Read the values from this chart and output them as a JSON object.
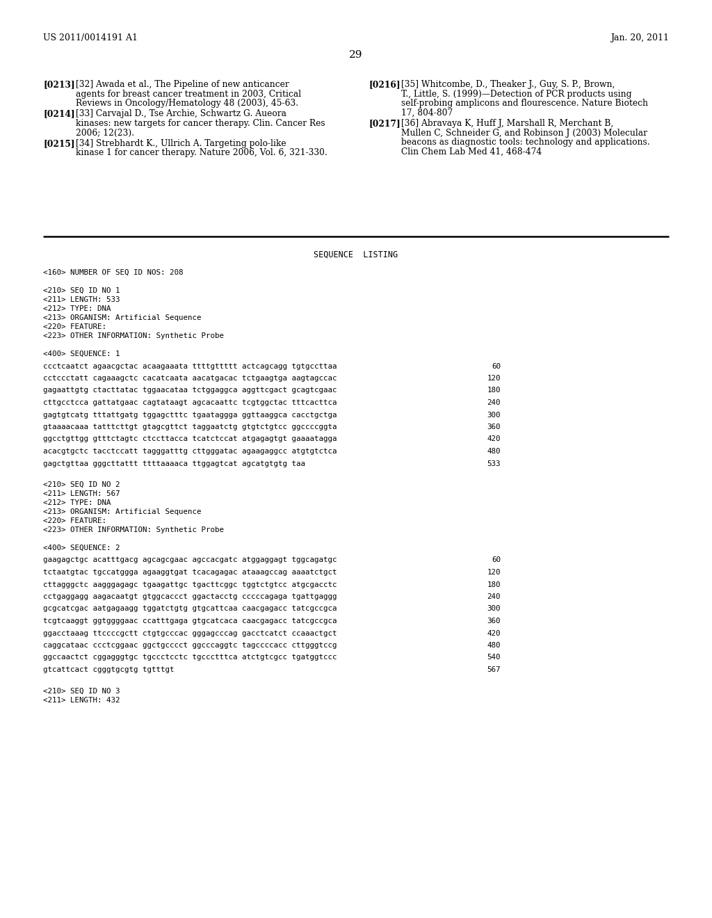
{
  "bg_color": "#ffffff",
  "header_left": "US 2011/0014191 A1",
  "header_right": "Jan. 20, 2011",
  "page_number": "29",
  "ref_left": [
    {
      "tag": "[0213]",
      "lines": [
        "   [32] Awada et al., The Pipeline of new anticancer",
        "   agents for breast cancer treatment in 2003, Critical",
        "   Reviews in Oncology/Hematology 48 (2003), 45-63."
      ]
    },
    {
      "tag": "[0214]",
      "lines": [
        "   [33] Carvajal D., Tse Archie, Schwartz G. Aueora",
        "   kinases: new targets for cancer therapy. Clin. Cancer Res",
        "   2006; 12(23)."
      ]
    },
    {
      "tag": "[0215]",
      "lines": [
        "   [34] Strebhardt K., Ullrich A. Targeting polo-like",
        "   kinase 1 for cancer therapy. Nature 2006, Vol. 6, 321-330."
      ]
    }
  ],
  "ref_right": [
    {
      "tag": "[0216]",
      "lines": [
        "   [35] Whitcombe, D., Theaker J., Guy, S. P., Brown,",
        "   T., Little, S. (1999)—Detection of PCR products using",
        "   self-probing amplicons and flourescence. Nature Biotech",
        "   17, 804-807"
      ]
    },
    {
      "tag": "[0217]",
      "lines": [
        "   [36] Abravaya K, Huff J, Marshall R, Merchant B,",
        "   Mullen C, Schneider G, and Robinson J (2003) Molecular",
        "   beacons as diagnostic tools: technology and applications.",
        "   Clin Chem Lab Med 41, 468-474"
      ]
    }
  ],
  "section_title": "SEQUENCE  LISTING",
  "seq1_header_lines": [
    "<160> NUMBER OF SEQ ID NOS: 208",
    "",
    "<210> SEQ ID NO 1",
    "<211> LENGTH: 533",
    "<212> TYPE: DNA",
    "<213> ORGANISM: Artificial Sequence",
    "<220> FEATURE:",
    "<223> OTHER INFORMATION: Synthetic Probe"
  ],
  "seq1_label": "<400> SEQUENCE: 1",
  "seq1_lines": [
    [
      "ccctcaatct agaacgctac acaagaaata ttttgttttt actcagcagg tgtgccttaa",
      "60"
    ],
    [
      "cctccctatt cagaaagctc cacatcaata aacatgacac tctgaagtga aagtagccac",
      "120"
    ],
    [
      "gagaattgtg ctacttatac tggaacataa tctggaggca aggttcgact gcagtcgaac",
      "180"
    ],
    [
      "cttgcctcca gattatgaac cagtataagt agcacaattc tcgtggctac tttcacttca",
      "240"
    ],
    [
      "gagtgtcatg tttattgatg tggagctttc tgaataggga ggttaaggca cacctgctga",
      "300"
    ],
    [
      "gtaaaacaaa tatttcttgt gtagcgttct taggaatctg gtgtctgtcc ggccccggta",
      "360"
    ],
    [
      "ggcctgttgg gtttctagtc ctccttacca tcatctccat atgagagtgt gaaaatagga",
      "420"
    ],
    [
      "acacgtgctc tacctccatt tagggatttg cttgggatac agaagaggcc atgtgtctca",
      "480"
    ],
    [
      "gagctgttaa gggcttattt ttttaaaaca ttggagtcat agcatgtgtg taa",
      "533"
    ]
  ],
  "seq2_header_lines": [
    "<210> SEQ ID NO 2",
    "<211> LENGTH: 567",
    "<212> TYPE: DNA",
    "<213> ORGANISM: Artificial Sequence",
    "<220> FEATURE:",
    "<223> OTHER INFORMATION: Synthetic Probe"
  ],
  "seq2_label": "<400> SEQUENCE: 2",
  "seq2_lines": [
    [
      "gaagagctgc acatttgacg agcagcgaac agccacgatc atggaggagt tggcagatgc",
      "60"
    ],
    [
      "tctaatgtac tgccatggga agaaggtgat tcacagagac ataaagccag aaaatctgct",
      "120"
    ],
    [
      "cttagggctc aagggagagc tgaagattgc tgacttcggc tggtctgtcc atgcgacctc",
      "180"
    ],
    [
      "cctgaggagg aagacaatgt gtggcaccct ggactacctg cccccagaga tgattgaggg",
      "240"
    ],
    [
      "gcgcatcgac aatgagaagg tggatctgtg gtgcattcaa caacgagacc tatcgccgca",
      "300"
    ],
    [
      "tcgtcaaggt ggtggggaac ccatttgaga gtgcatcaca caacgagacc tatcgccgca",
      "360"
    ],
    [
      "ggacctaaag ttccccgctt ctgtgcccac gggagcccag gacctcatct ccaaactgct",
      "420"
    ],
    [
      "caggcataac ccctcggaac ggctgcccct ggcccaggtc tagccccacc cttgggtccg",
      "480"
    ],
    [
      "ggccaactct cggagggtgc tgccctcctc tgccctttca atctgtcgcc tgatggtccc",
      "540"
    ],
    [
      "gtcattcact cgggtgcgtg tgtttgt",
      "567"
    ]
  ],
  "seq3_header_lines": [
    "<210> SEQ ID NO 3",
    "<211> LENGTH: 432"
  ]
}
